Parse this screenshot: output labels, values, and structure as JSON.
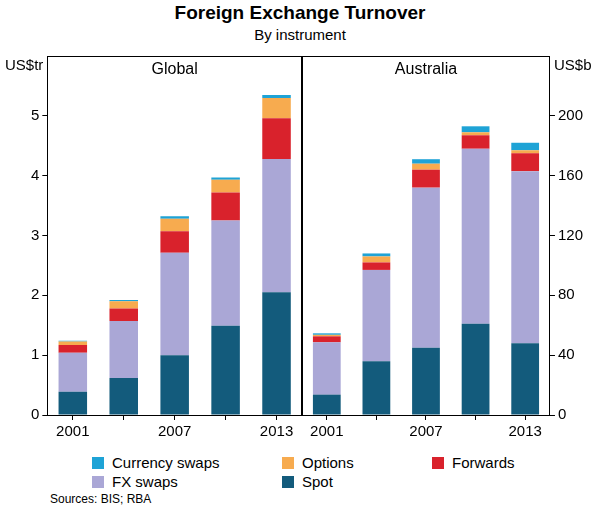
{
  "title": "Foreign Exchange Turnover",
  "subtitle": "By instrument",
  "sources": "Sources: BIS; RBA",
  "chart_data": [
    {
      "type": "bar",
      "title": "Global",
      "y_label": "US$tr",
      "stacked": true,
      "grid": false,
      "legend": "bottom",
      "categories": [
        "2001",
        null,
        "2007",
        null,
        "2013"
      ],
      "ylim": [
        0,
        6
      ],
      "yticks": [
        0,
        1,
        2,
        3,
        4,
        5
      ],
      "series": [
        {
          "name": "Spot",
          "color": "#135b7c",
          "values": [
            0.39,
            0.62,
            1.0,
            1.49,
            2.05
          ]
        },
        {
          "name": "FX swaps",
          "color": "#aaa7d6",
          "values": [
            0.65,
            0.95,
            1.71,
            1.76,
            2.23
          ]
        },
        {
          "name": "Forwards",
          "color": "#d9222c",
          "values": [
            0.13,
            0.21,
            0.36,
            0.47,
            0.68
          ]
        },
        {
          "name": "Options",
          "color": "#f7ab4f",
          "values": [
            0.06,
            0.12,
            0.21,
            0.21,
            0.34
          ]
        },
        {
          "name": "Currency swaps",
          "color": "#1ea3d6",
          "values": [
            0.01,
            0.02,
            0.04,
            0.04,
            0.05
          ]
        }
      ]
    },
    {
      "type": "bar",
      "title": "Australia",
      "y_label": "US$b",
      "stacked": true,
      "grid": false,
      "categories": [
        "2001",
        null,
        "2007",
        null,
        "2013"
      ],
      "y2lim": [
        0,
        240
      ],
      "y2ticks": [
        0,
        40,
        80,
        120,
        160,
        200
      ],
      "series": [
        {
          "name": "Spot",
          "color": "#135b7c",
          "axis": "y2",
          "values": [
            13.6,
            36,
            45,
            61,
            48
          ]
        },
        {
          "name": "FX swaps",
          "color": "#aaa7d6",
          "axis": "y2",
          "values": [
            35,
            61,
            107,
            117,
            115
          ]
        },
        {
          "name": "Forwards",
          "color": "#d9222c",
          "axis": "y2",
          "values": [
            4,
            5,
            12,
            9,
            12
          ]
        },
        {
          "name": "Options",
          "color": "#f7ab4f",
          "axis": "y2",
          "values": [
            1,
            4,
            4,
            2,
            2
          ]
        },
        {
          "name": "Currency swaps",
          "color": "#1ea3d6",
          "axis": "y2",
          "values": [
            1,
            2,
            3,
            4,
            5
          ]
        }
      ]
    }
  ]
}
